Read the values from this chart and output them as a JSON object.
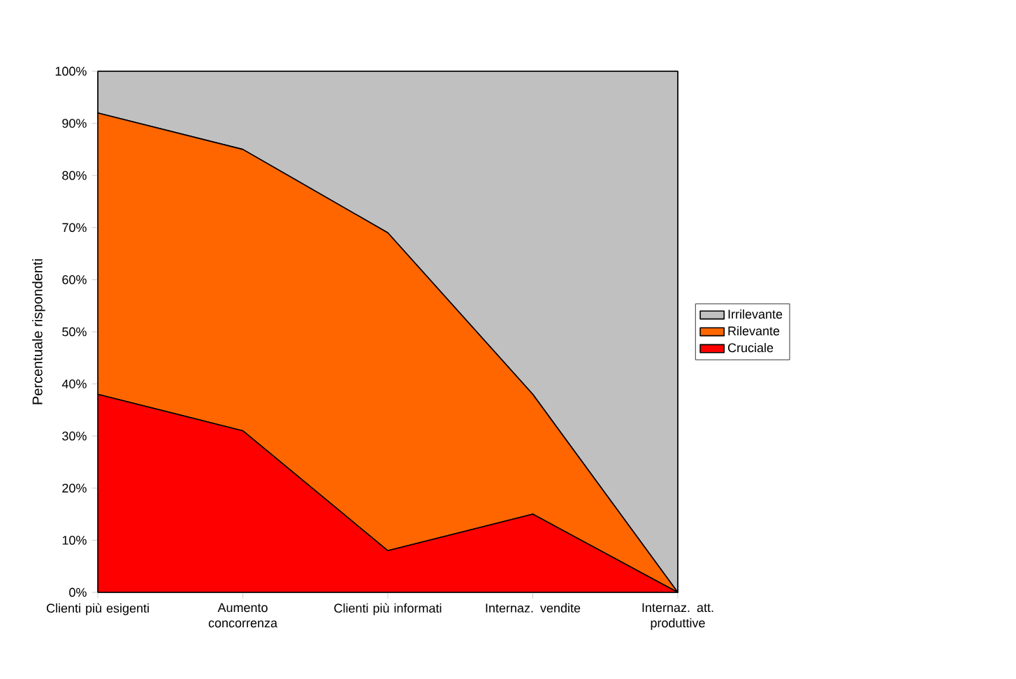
{
  "chart_data": {
    "type": "area",
    "stacked": true,
    "ylabel": "Percentuale rispondenti",
    "categories": [
      "Clienti più esigenti",
      "Aumento concorrenza",
      "Clienti più informati",
      "Internaz. vendite",
      "Internaz. att. produttive"
    ],
    "series": [
      {
        "name": "Cruciale",
        "color": "#ff0000",
        "values": [
          38,
          31,
          8,
          15,
          0
        ]
      },
      {
        "name": "Rilevante",
        "color": "#ff6600",
        "values": [
          54,
          54,
          61,
          23,
          0
        ]
      },
      {
        "name": "Irrilevante",
        "color": "#c0c0c0",
        "values": [
          8,
          15,
          31,
          62,
          100
        ]
      }
    ],
    "ylim": [
      0,
      100
    ],
    "yticks": [
      {
        "value": 0,
        "label": "0%"
      },
      {
        "value": 10,
        "label": "10%"
      },
      {
        "value": 20,
        "label": "20%"
      },
      {
        "value": 30,
        "label": "30%"
      },
      {
        "value": 40,
        "label": "40%"
      },
      {
        "value": 50,
        "label": "50%"
      },
      {
        "value": 60,
        "label": "60%"
      },
      {
        "value": 70,
        "label": "70%"
      },
      {
        "value": 80,
        "label": "80%"
      },
      {
        "value": 90,
        "label": "90%"
      },
      {
        "value": 100,
        "label": "100%"
      }
    ],
    "legend": "right",
    "grid": false
  }
}
